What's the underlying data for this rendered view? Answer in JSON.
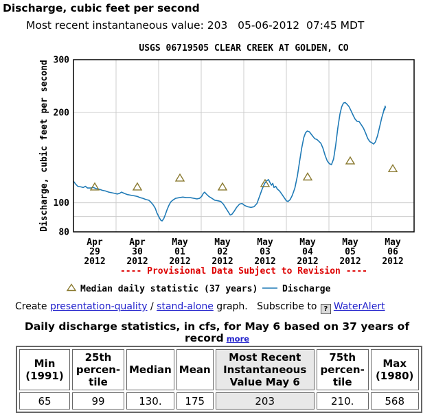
{
  "header": {
    "title": "Discharge, cubic feet per second",
    "subtitle": "Most recent instantaneous value: 203   05-06-2012  07:45 MDT"
  },
  "links": {
    "create_prefix": "Create ",
    "presentation_quality": "presentation-quality",
    "separator": " / ",
    "stand_alone": "stand-alone",
    "graph_suffix": " graph.",
    "subscribe_text": "   Subscribe to ",
    "help_icon_glyph": "?",
    "wateralert": "WaterAlert"
  },
  "table": {
    "title": "Daily discharge statistics, in cfs, for May 6 based on 37 years of record",
    "more_label": "more",
    "headers": [
      "Min\n(1991)",
      "25th\npercen-\ntile",
      "Median",
      "Mean",
      "Most Recent\nInstantaneous\nValue May 6",
      "75th\npercen-\ntile",
      "Max\n(1980)"
    ],
    "values": [
      "65",
      "99",
      "130.",
      "175",
      "203",
      "210.",
      "568"
    ],
    "highlight_column": 4,
    "highlight_color": "#e8e8e8"
  },
  "chart_data": {
    "type": "line",
    "title": "USGS 06719505 CLEAR CREEK AT GOLDEN, CO",
    "ylabel": "Discharge, cubic feet per second",
    "yscale": "log",
    "ylim": [
      80,
      300
    ],
    "yticks": [
      300,
      200,
      100,
      80
    ],
    "ygridlines": [
      90,
      100,
      200
    ],
    "xlim_days": [
      0,
      8
    ],
    "grid": true,
    "x_days": [
      [
        "Apr",
        "29",
        "2012"
      ],
      [
        "Apr",
        "30",
        "2012"
      ],
      [
        "May",
        "01",
        "2012"
      ],
      [
        "May",
        "02",
        "2012"
      ],
      [
        "May",
        "03",
        "2012"
      ],
      [
        "May",
        "04",
        "2012"
      ],
      [
        "May",
        "05",
        "2012"
      ],
      [
        "May",
        "06",
        "2012"
      ]
    ],
    "provisional_note": "---- Provisional Data Subject to Revision ----",
    "provisional_color": "#dd0000",
    "legend_position": "bottom",
    "legend": [
      {
        "label": "Median daily statistic (37 years)",
        "marker": "triangle",
        "color": "#8a7a30"
      },
      {
        "label": "Discharge",
        "marker": "line",
        "color": "#1f7ab6"
      }
    ],
    "series": [
      {
        "name": "Discharge",
        "type": "line",
        "color": "#1f7ab6",
        "points": [
          [
            0.0,
            118
          ],
          [
            0.05,
            115.5
          ],
          [
            0.1,
            113.5
          ],
          [
            0.17,
            113
          ],
          [
            0.23,
            112.5
          ],
          [
            0.28,
            113.5
          ],
          [
            0.33,
            112
          ],
          [
            0.4,
            112
          ],
          [
            0.47,
            112.5
          ],
          [
            0.53,
            111.5
          ],
          [
            0.6,
            111
          ],
          [
            0.68,
            110
          ],
          [
            0.75,
            109.5
          ],
          [
            0.83,
            108.5
          ],
          [
            0.9,
            108
          ],
          [
            0.97,
            107.5
          ],
          [
            1.03,
            107
          ],
          [
            1.08,
            107.5
          ],
          [
            1.13,
            108.5
          ],
          [
            1.19,
            107.5
          ],
          [
            1.27,
            106.5
          ],
          [
            1.35,
            106
          ],
          [
            1.43,
            105.5
          ],
          [
            1.5,
            105
          ],
          [
            1.57,
            104
          ],
          [
            1.63,
            103.5
          ],
          [
            1.7,
            102.5
          ],
          [
            1.77,
            102
          ],
          [
            1.82,
            100.5
          ],
          [
            1.87,
            98.5
          ],
          [
            1.92,
            96
          ],
          [
            1.96,
            92.5
          ],
          [
            2.01,
            89.5
          ],
          [
            2.05,
            87.5
          ],
          [
            2.08,
            87
          ],
          [
            2.12,
            88.5
          ],
          [
            2.16,
            91.5
          ],
          [
            2.2,
            95
          ],
          [
            2.24,
            98
          ],
          [
            2.28,
            100.5
          ],
          [
            2.33,
            102
          ],
          [
            2.4,
            103.5
          ],
          [
            2.48,
            104
          ],
          [
            2.57,
            104.5
          ],
          [
            2.65,
            104
          ],
          [
            2.75,
            104
          ],
          [
            2.83,
            103.5
          ],
          [
            2.9,
            103
          ],
          [
            2.96,
            103.5
          ],
          [
            3.01,
            105
          ],
          [
            3.05,
            107.5
          ],
          [
            3.08,
            108.5
          ],
          [
            3.12,
            107
          ],
          [
            3.18,
            105
          ],
          [
            3.25,
            103.5
          ],
          [
            3.32,
            102
          ],
          [
            3.4,
            101.5
          ],
          [
            3.46,
            101
          ],
          [
            3.52,
            99
          ],
          [
            3.57,
            96.5
          ],
          [
            3.63,
            93.5
          ],
          [
            3.68,
            91
          ],
          [
            3.72,
            91.5
          ],
          [
            3.77,
            93.5
          ],
          [
            3.83,
            96.5
          ],
          [
            3.9,
            99
          ],
          [
            3.96,
            99.5
          ],
          [
            4.02,
            98
          ],
          [
            4.09,
            97
          ],
          [
            4.17,
            96.5
          ],
          [
            4.24,
            97
          ],
          [
            4.31,
            99.5
          ],
          [
            4.37,
            105
          ],
          [
            4.43,
            111
          ],
          [
            4.49,
            116
          ],
          [
            4.54,
            118.5
          ],
          [
            4.58,
            119.5
          ],
          [
            4.62,
            116.5
          ],
          [
            4.65,
            114.5
          ],
          [
            4.68,
            116
          ],
          [
            4.71,
            112.5
          ],
          [
            4.75,
            113.5
          ],
          [
            4.79,
            111
          ],
          [
            4.84,
            109.5
          ],
          [
            4.89,
            107
          ],
          [
            4.94,
            104.5
          ],
          [
            5.0,
            101.5
          ],
          [
            5.04,
            101
          ],
          [
            5.09,
            102.5
          ],
          [
            5.14,
            106
          ],
          [
            5.2,
            112
          ],
          [
            5.26,
            123
          ],
          [
            5.31,
            137
          ],
          [
            5.36,
            152
          ],
          [
            5.41,
            165
          ],
          [
            5.45,
            171
          ],
          [
            5.49,
            173.5
          ],
          [
            5.54,
            172.5
          ],
          [
            5.58,
            169.5
          ],
          [
            5.63,
            166
          ],
          [
            5.67,
            163.5
          ],
          [
            5.72,
            162.5
          ],
          [
            5.76,
            160.5
          ],
          [
            5.81,
            158
          ],
          [
            5.86,
            152
          ],
          [
            5.91,
            144
          ],
          [
            5.96,
            138
          ],
          [
            6.01,
            135
          ],
          [
            6.06,
            134
          ],
          [
            6.11,
            140
          ],
          [
            6.16,
            156
          ],
          [
            6.21,
            178
          ],
          [
            6.26,
            198
          ],
          [
            6.3,
            209
          ],
          [
            6.34,
            215
          ],
          [
            6.38,
            216
          ],
          [
            6.42,
            213.5
          ],
          [
            6.47,
            209.5
          ],
          [
            6.51,
            204
          ],
          [
            6.56,
            197
          ],
          [
            6.61,
            190.5
          ],
          [
            6.66,
            187
          ],
          [
            6.71,
            186.5
          ],
          [
            6.76,
            182
          ],
          [
            6.81,
            177.5
          ],
          [
            6.86,
            171
          ],
          [
            6.91,
            164
          ],
          [
            6.96,
            160
          ],
          [
            7.01,
            158.5
          ],
          [
            7.05,
            157
          ],
          [
            7.09,
            159.5
          ],
          [
            7.14,
            167
          ],
          [
            7.19,
            179
          ],
          [
            7.24,
            192
          ],
          [
            7.28,
            201
          ],
          [
            7.3,
            206.5
          ],
          [
            7.31,
            204
          ],
          [
            7.32,
            210
          ],
          [
            7.33,
            207
          ]
        ]
      },
      {
        "name": "Median daily statistic (37 years)",
        "type": "triangle-marker",
        "color": "#8a7a30",
        "points": [
          [
            0.5,
            113
          ],
          [
            1.5,
            113
          ],
          [
            2.5,
            121
          ],
          [
            3.5,
            113
          ],
          [
            4.5,
            116
          ],
          [
            5.5,
            122
          ],
          [
            6.5,
            138
          ],
          [
            7.5,
            130
          ]
        ]
      }
    ]
  }
}
